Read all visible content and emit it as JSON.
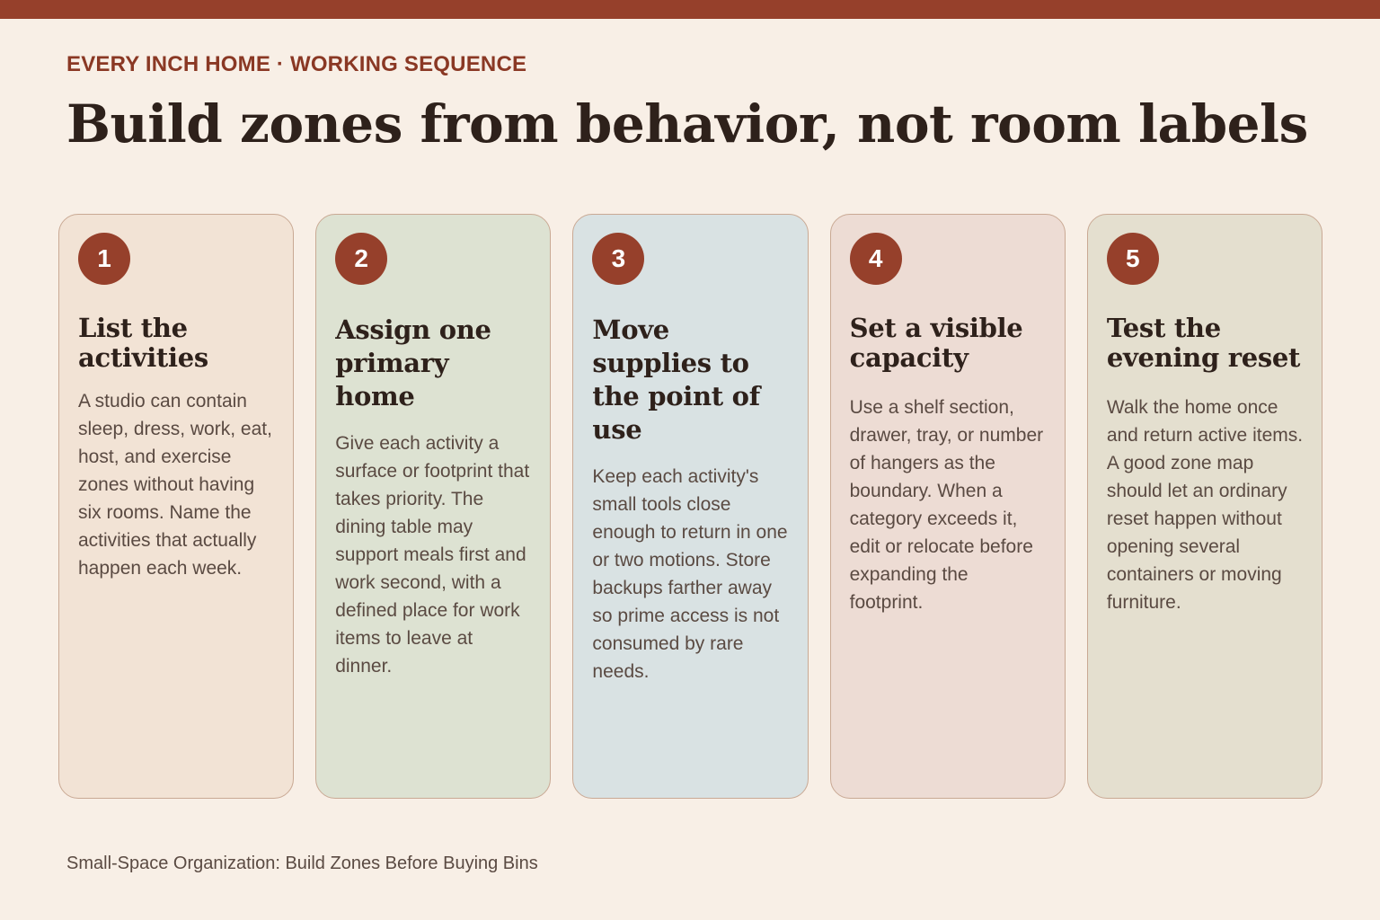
{
  "header": {
    "eyebrow": "EVERY INCH HOME · WORKING SEQUENCE",
    "title": "Build zones from behavior, not room labels"
  },
  "steps": [
    {
      "number": "1",
      "title": "List the activities",
      "body": "A studio can contain sleep, dress, work, eat, host, and exercise zones without having six rooms. Name the activities that actually happen each week."
    },
    {
      "number": "2",
      "title": "Assign one primary home",
      "body": "Give each activity a surface or footprint that takes priority. The dining table may support meals first and work second, with a defined place for work items to leave at dinner."
    },
    {
      "number": "3",
      "title": "Move supplies to the point of use",
      "body": "Keep each activity's small tools close enough to return in one or two motions. Store backups farther away so prime access is not consumed by rare needs."
    },
    {
      "number": "4",
      "title": "Set a visible capacity",
      "body": "Use a shelf section, drawer, tray, or number of hangers as the boundary. When a category exceeds it, edit or relocate before expanding the footprint."
    },
    {
      "number": "5",
      "title": "Test the evening reset",
      "body": "Walk the home once and return active items. A good zone map should let an ordinary reset happen without opening several containers or moving furniture."
    }
  ],
  "footer": {
    "caption": "Small-Space Organization: Build Zones Before Buying Bins"
  },
  "colors": {
    "accent": "#96402b",
    "background": "#f8efe6",
    "card_1": "#f2e3d5",
    "card_2": "#dde2d2",
    "card_3": "#d9e2e3",
    "card_4": "#eddcd4",
    "card_5": "#e4dfcf"
  }
}
